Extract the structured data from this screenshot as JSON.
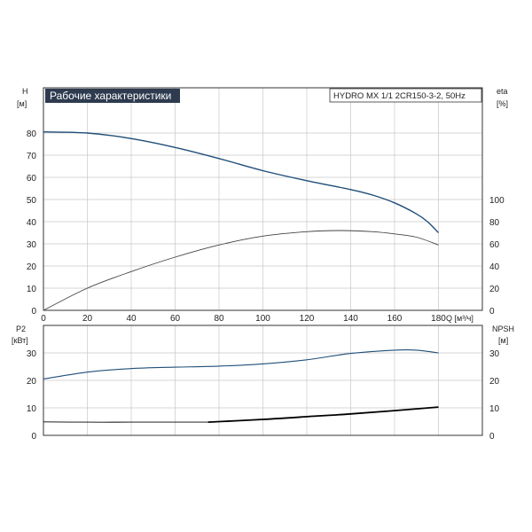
{
  "colors": {
    "title_bg": "#2e3b4f",
    "grid": "#c8c8c8",
    "frame": "#333333",
    "curve_blue": "#1f4e79",
    "curve_thin": "#444444",
    "curve_black": "#000000"
  },
  "chart_data": [
    {
      "type": "line",
      "title": "Рабочие характеристики",
      "model_label": "HYDRO MX 1/1 2CR150-3-2, 50Hz",
      "xlabel": "Q [м³/ч]",
      "x_ticks": [
        "0",
        "20",
        "40",
        "60",
        "80",
        "100",
        "120",
        "140",
        "160",
        "180"
      ],
      "xlim": [
        0,
        200
      ],
      "left_axis": {
        "name": "H",
        "unit": "[м]",
        "ylim": [
          0,
          90
        ],
        "ticks": [
          "0",
          "10",
          "20",
          "30",
          "40",
          "50",
          "60",
          "70",
          "80"
        ]
      },
      "right_axis": {
        "name": "eta",
        "unit": "[%]",
        "ticks": [
          "0",
          "20",
          "40",
          "60",
          "80",
          "100"
        ]
      },
      "grid": true,
      "series": [
        {
          "axis": "left",
          "color": "#1f4e79",
          "x": [
            0,
            20,
            40,
            60,
            80,
            100,
            120,
            140,
            150,
            160,
            170,
            175,
            180
          ],
          "y": [
            80.5,
            80,
            77.5,
            73.5,
            68.5,
            63,
            58.5,
            54.5,
            52,
            48.5,
            43.5,
            40,
            35
          ]
        },
        {
          "axis": "right",
          "color": "#444444",
          "x": [
            0,
            20,
            40,
            60,
            80,
            100,
            120,
            135,
            150,
            160,
            170,
            180
          ],
          "y": [
            0,
            20,
            35,
            48,
            59,
            67,
            71,
            72,
            71,
            69,
            66,
            59
          ]
        }
      ]
    },
    {
      "type": "line",
      "xlim": [
        0,
        200
      ],
      "left_axis": {
        "name": "P2",
        "unit": "[кВт]",
        "ylim": [
          0,
          40
        ],
        "ticks": [
          "0",
          "10",
          "20",
          "30"
        ]
      },
      "right_axis": {
        "name": "NPSH",
        "unit": "[м]",
        "ticks": [
          "0",
          "10",
          "20",
          "30"
        ]
      },
      "grid": true,
      "series": [
        {
          "axis": "right",
          "color": "#1f4e79",
          "x": [
            0,
            20,
            40,
            60,
            80,
            100,
            120,
            140,
            160,
            170,
            180
          ],
          "y": [
            20.5,
            23,
            24.3,
            24.8,
            25.2,
            26,
            27.5,
            29.8,
            31,
            31,
            30
          ]
        },
        {
          "axis": "left",
          "color": "#000000",
          "x": [
            0,
            20,
            40,
            60,
            75,
            100,
            120,
            140,
            160,
            180
          ],
          "y": [
            4.9,
            4.8,
            4.8,
            4.8,
            4.8,
            5.8,
            6.8,
            7.8,
            9,
            10.3
          ]
        }
      ]
    }
  ]
}
